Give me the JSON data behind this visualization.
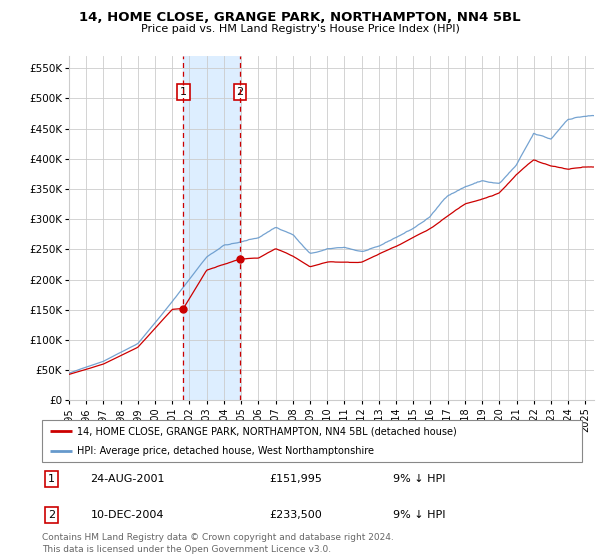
{
  "title": "14, HOME CLOSE, GRANGE PARK, NORTHAMPTON, NN4 5BL",
  "subtitle": "Price paid vs. HM Land Registry's House Price Index (HPI)",
  "ylabel_ticks": [
    "£0",
    "£50K",
    "£100K",
    "£150K",
    "£200K",
    "£250K",
    "£300K",
    "£350K",
    "£400K",
    "£450K",
    "£500K",
    "£550K"
  ],
  "ytick_values": [
    0,
    50000,
    100000,
    150000,
    200000,
    250000,
    300000,
    350000,
    400000,
    450000,
    500000,
    550000
  ],
  "ylim": [
    0,
    570000
  ],
  "xlim_start": 1995.0,
  "xlim_end": 2025.5,
  "transaction1_date": 2001.65,
  "transaction1_price": 151995,
  "transaction2_date": 2004.94,
  "transaction2_price": 233500,
  "shade_start": 2001.65,
  "shade_end": 2004.94,
  "red_color": "#cc0000",
  "blue_color": "#6699cc",
  "shade_color": "#ddeeff",
  "dashed_color": "#cc0000",
  "legend_line1": "14, HOME CLOSE, GRANGE PARK, NORTHAMPTON, NN4 5BL (detached house)",
  "legend_line2": "HPI: Average price, detached house, West Northamptonshire",
  "table_row1_num": "1",
  "table_row1_date": "24-AUG-2001",
  "table_row1_price": "£151,995",
  "table_row1_hpi": "9% ↓ HPI",
  "table_row2_num": "2",
  "table_row2_date": "10-DEC-2004",
  "table_row2_price": "£233,500",
  "table_row2_hpi": "9% ↓ HPI",
  "footnote": "Contains HM Land Registry data © Crown copyright and database right 2024.\nThis data is licensed under the Open Government Licence v3.0.",
  "background_color": "#ffffff",
  "grid_color": "#cccccc"
}
